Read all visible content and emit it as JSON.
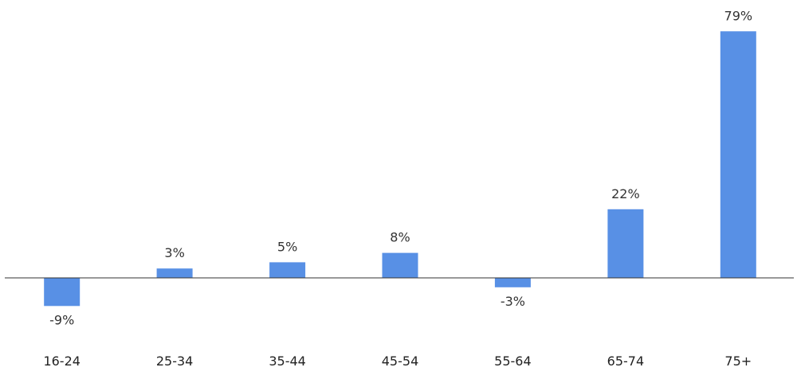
{
  "chart_data": {
    "type": "bar",
    "title": "",
    "xlabel": "",
    "ylabel": "",
    "categories": [
      "16-24",
      "25-34",
      "35-44",
      "45-54",
      "55-64",
      "65-74",
      "75+"
    ],
    "values": [
      -9,
      3,
      5,
      8,
      -3,
      22,
      79
    ],
    "data_labels": [
      "-9%",
      "3%",
      "5%",
      "8%",
      "-3%",
      "22%",
      "79%"
    ],
    "ylim": [
      -9,
      79
    ],
    "grid": false,
    "legend": "none",
    "bar_color": "#5890e5",
    "axis_color": "#333333"
  }
}
